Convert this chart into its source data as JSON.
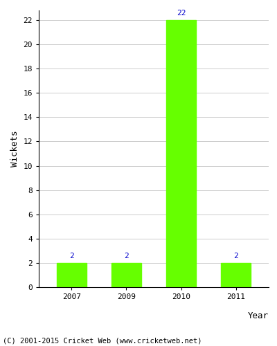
{
  "categories": [
    "2007",
    "2009",
    "2010",
    "2011"
  ],
  "values": [
    2,
    2,
    22,
    2
  ],
  "bar_color": "#66ff00",
  "bar_edge_color": "#66ff00",
  "xlabel": "Year",
  "ylabel": "Wickets",
  "ylim": [
    0,
    22
  ],
  "yticks": [
    0,
    2,
    4,
    6,
    8,
    10,
    12,
    14,
    16,
    18,
    20,
    22
  ],
  "label_color": "#0000cc",
  "label_fontsize": 8,
  "axis_label_fontsize": 9,
  "tick_fontsize": 8,
  "footer_text": "(C) 2001-2015 Cricket Web (www.cricketweb.net)",
  "footer_fontsize": 7.5,
  "background_color": "#ffffff",
  "grid_color": "#cccccc"
}
